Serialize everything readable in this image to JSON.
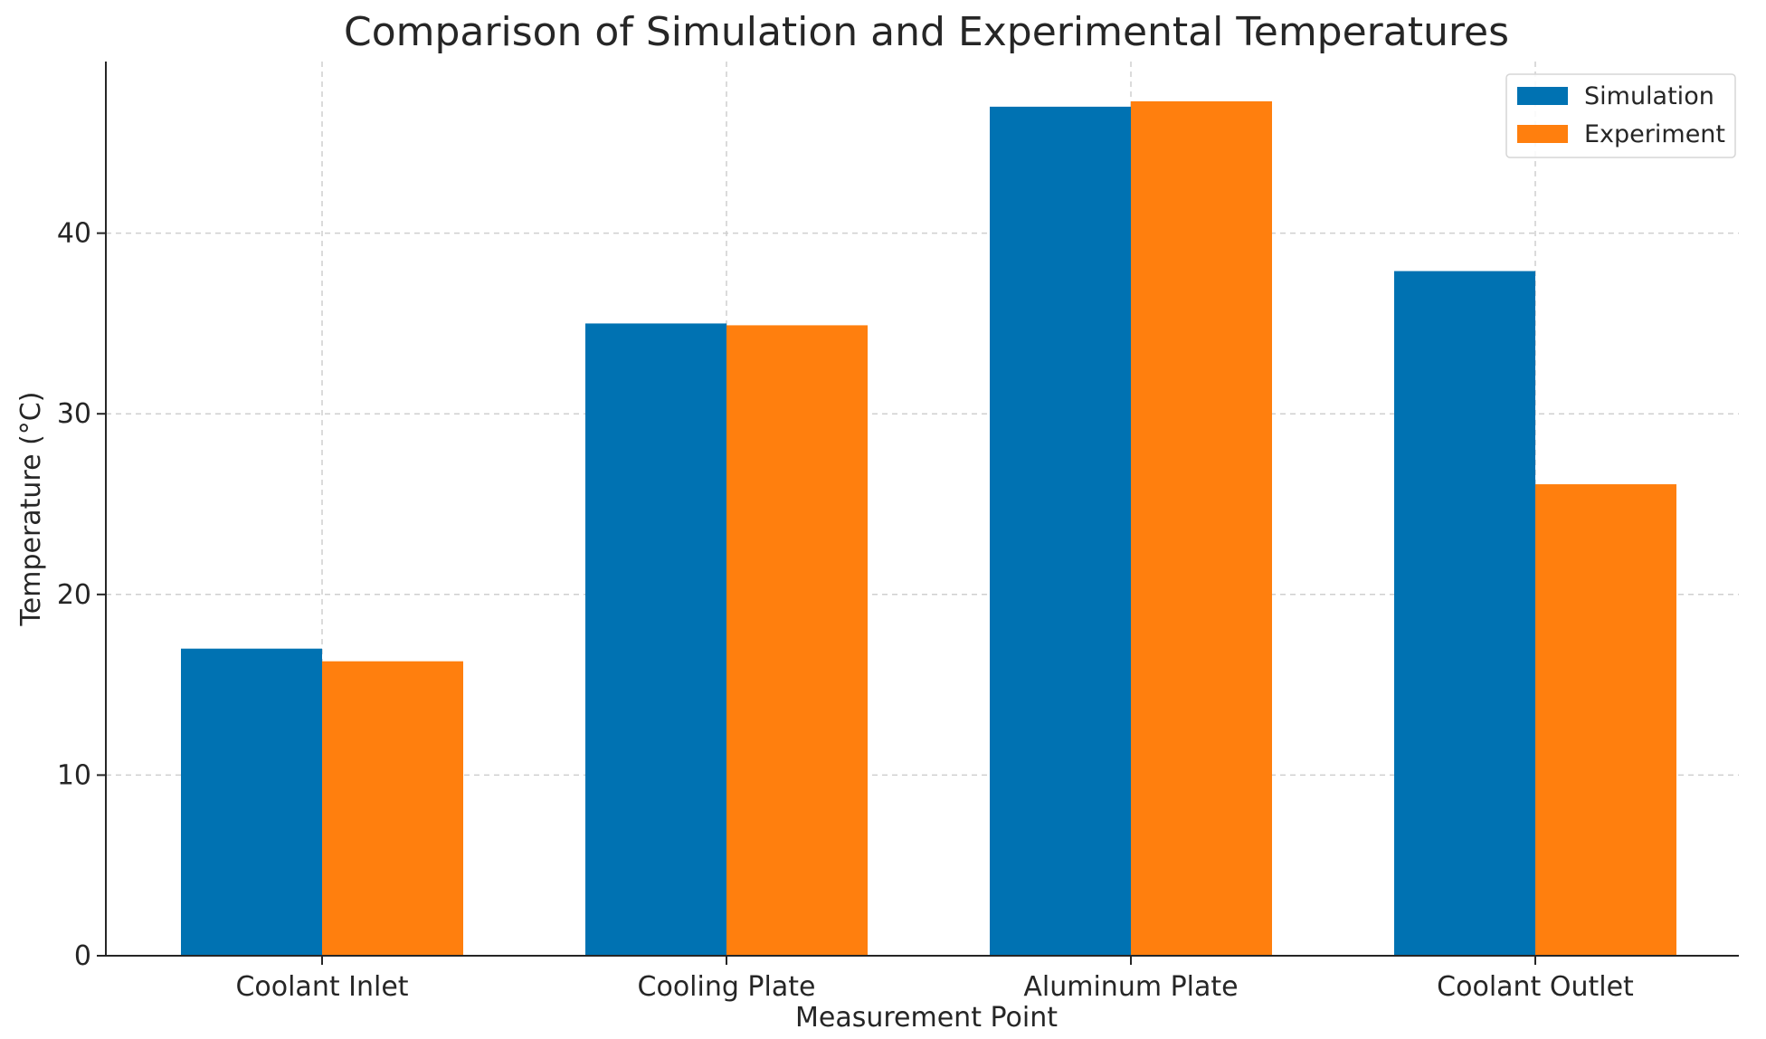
{
  "chart_data": {
    "type": "bar",
    "title": "Comparison of Simulation and Experimental Temperatures",
    "xlabel": "Measurement Point",
    "ylabel": "Temperature (°C)",
    "categories": [
      "Coolant Inlet",
      "Cooling Plate",
      "Aluminum Plate",
      "Coolant Outlet"
    ],
    "series": [
      {
        "name": "Simulation",
        "color": "#0072B2",
        "values": [
          17.0,
          35.0,
          47.0,
          37.9
        ]
      },
      {
        "name": "Experiment",
        "color": "#FF7F0E",
        "values": [
          16.3,
          34.9,
          47.3,
          26.1
        ]
      }
    ],
    "ylim": [
      0,
      49.5
    ],
    "yticks": [
      0,
      10,
      20,
      30,
      40
    ],
    "grid": true,
    "legend": "top-right"
  }
}
